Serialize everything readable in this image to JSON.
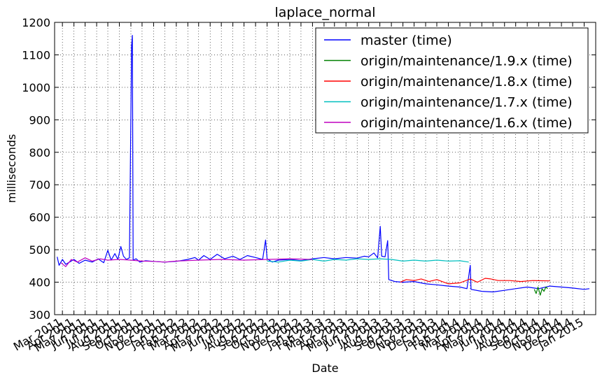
{
  "chart_data": {
    "type": "line",
    "title": "laplace_normal",
    "xlabel": "Date",
    "ylabel": "milliseconds",
    "ylim": [
      300,
      1200
    ],
    "yticks": [
      300,
      400,
      500,
      600,
      700,
      800,
      900,
      1000,
      1100,
      1200
    ],
    "xlim": [
      "2011-02-08",
      "2015-02-01"
    ],
    "xticks": [
      "Mar 2011",
      "Apr 2011",
      "May 2011",
      "Jun 2011",
      "Jul 2011",
      "Aug 2011",
      "Sep 2011",
      "Oct 2011",
      "Nov 2011",
      "Dec 2011",
      "Jan 2012",
      "Feb 2012",
      "Mar 2012",
      "Apr 2012",
      "May 2012",
      "Jun 2012",
      "Jul 2012",
      "Aug 2012",
      "Sep 2012",
      "Oct 2012",
      "Nov 2012",
      "Dec 2012",
      "Jan 2013",
      "Feb 2013",
      "Mar 2013",
      "Apr 2013",
      "May 2013",
      "Jun 2013",
      "Jul 2013",
      "Aug 2013",
      "Sep 2013",
      "Oct 2013",
      "Nov 2013",
      "Dec 2013",
      "Jan 2014",
      "Feb 2014",
      "Mar 2014",
      "Apr 2014",
      "May 2014",
      "Jun 2014",
      "Jul 2014",
      "Aug 2014",
      "Sep 2014",
      "Oct 2014",
      "Nov 2014",
      "Dec 2014",
      "Jan 2015"
    ],
    "grid": true,
    "legend_position": "top-right",
    "series": [
      {
        "name": "master (time)",
        "color": "#0000ff",
        "points": [
          [
            "2011-02-15",
            478
          ],
          [
            "2011-02-20",
            452
          ],
          [
            "2011-03-01",
            470
          ],
          [
            "2011-03-10",
            455
          ],
          [
            "2011-03-20",
            462
          ],
          [
            "2011-04-01",
            470
          ],
          [
            "2011-04-15",
            458
          ],
          [
            "2011-05-01",
            468
          ],
          [
            "2011-05-20",
            462
          ],
          [
            "2011-06-05",
            472
          ],
          [
            "2011-06-20",
            460
          ],
          [
            "2011-07-01",
            498
          ],
          [
            "2011-07-10",
            468
          ],
          [
            "2011-07-20",
            488
          ],
          [
            "2011-07-28",
            470
          ],
          [
            "2011-08-05",
            510
          ],
          [
            "2011-08-12",
            480
          ],
          [
            "2011-08-20",
            470
          ],
          [
            "2011-08-28",
            475
          ],
          [
            "2011-09-03",
            1128
          ],
          [
            "2011-09-05",
            1160
          ],
          [
            "2011-09-07",
            468
          ],
          [
            "2011-09-15",
            472
          ],
          [
            "2011-09-25",
            462
          ],
          [
            "2011-10-10",
            466
          ],
          [
            "2011-11-01",
            464
          ],
          [
            "2011-12-01",
            462
          ],
          [
            "2012-01-01",
            464
          ],
          [
            "2012-02-01",
            470
          ],
          [
            "2012-02-20",
            476
          ],
          [
            "2012-03-01",
            468
          ],
          [
            "2012-03-15",
            482
          ],
          [
            "2012-04-01",
            470
          ],
          [
            "2012-04-20",
            486
          ],
          [
            "2012-05-10",
            472
          ],
          [
            "2012-06-01",
            480
          ],
          [
            "2012-06-20",
            470
          ],
          [
            "2012-07-10",
            482
          ],
          [
            "2012-08-01",
            476
          ],
          [
            "2012-08-20",
            470
          ],
          [
            "2012-08-28",
            530
          ],
          [
            "2012-09-01",
            472
          ],
          [
            "2012-09-15",
            462
          ],
          [
            "2012-10-01",
            468
          ],
          [
            "2012-11-01",
            470
          ],
          [
            "2012-12-01",
            466
          ],
          [
            "2013-01-01",
            472
          ],
          [
            "2013-02-01",
            476
          ],
          [
            "2013-03-01",
            472
          ],
          [
            "2013-04-01",
            476
          ],
          [
            "2013-05-01",
            474
          ],
          [
            "2013-05-20",
            480
          ],
          [
            "2013-06-01",
            478
          ],
          [
            "2013-06-15",
            490
          ],
          [
            "2013-06-25",
            475
          ],
          [
            "2013-07-02",
            572
          ],
          [
            "2013-07-06",
            480
          ],
          [
            "2013-07-15",
            478
          ],
          [
            "2013-07-22",
            528
          ],
          [
            "2013-07-25",
            408
          ],
          [
            "2013-08-10",
            402
          ],
          [
            "2013-09-01",
            400
          ],
          [
            "2013-10-01",
            402
          ],
          [
            "2013-11-01",
            395
          ],
          [
            "2013-12-01",
            392
          ],
          [
            "2014-01-01",
            388
          ],
          [
            "2014-02-01",
            385
          ],
          [
            "2014-02-20",
            380
          ],
          [
            "2014-03-01",
            452
          ],
          [
            "2014-03-03",
            378
          ],
          [
            "2014-04-01",
            372
          ],
          [
            "2014-05-01",
            370
          ],
          [
            "2014-06-01",
            375
          ],
          [
            "2014-07-01",
            380
          ],
          [
            "2014-08-01",
            385
          ],
          [
            "2014-09-01",
            380
          ],
          [
            "2014-10-01",
            388
          ],
          [
            "2014-11-01",
            385
          ],
          [
            "2014-12-01",
            382
          ],
          [
            "2015-01-01",
            378
          ],
          [
            "2015-01-15",
            380
          ]
        ]
      },
      {
        "name": "origin/maintenance/1.9.x (time)",
        "color": "#008000",
        "points": [
          [
            "2014-08-20",
            378
          ],
          [
            "2014-08-25",
            365
          ],
          [
            "2014-08-30",
            385
          ],
          [
            "2014-09-05",
            360
          ],
          [
            "2014-09-10",
            380
          ],
          [
            "2014-09-15",
            372
          ],
          [
            "2014-09-20",
            385
          ],
          [
            "2014-09-25",
            380
          ]
        ]
      },
      {
        "name": "origin/maintenance/1.8.x (time)",
        "color": "#ff0000",
        "points": [
          [
            "2013-08-25",
            400
          ],
          [
            "2013-09-10",
            408
          ],
          [
            "2013-10-01",
            405
          ],
          [
            "2013-10-20",
            410
          ],
          [
            "2013-11-10",
            402
          ],
          [
            "2013-12-01",
            408
          ],
          [
            "2014-01-01",
            395
          ],
          [
            "2014-02-01",
            398
          ],
          [
            "2014-03-01",
            410
          ],
          [
            "2014-03-20",
            400
          ],
          [
            "2014-04-10",
            412
          ],
          [
            "2014-04-25",
            410
          ],
          [
            "2014-05-15",
            405
          ],
          [
            "2014-06-15",
            405
          ],
          [
            "2014-07-15",
            402
          ],
          [
            "2014-08-15",
            405
          ],
          [
            "2014-10-01",
            404
          ]
        ]
      },
      {
        "name": "origin/maintenance/1.7.x (time)",
        "color": "#00bfbf",
        "points": [
          [
            "2012-09-01",
            465
          ],
          [
            "2012-10-01",
            462
          ],
          [
            "2012-11-01",
            468
          ],
          [
            "2012-12-01",
            465
          ],
          [
            "2013-01-01",
            470
          ],
          [
            "2013-02-01",
            465
          ],
          [
            "2013-03-01",
            470
          ],
          [
            "2013-04-01",
            468
          ],
          [
            "2013-05-01",
            472
          ],
          [
            "2013-06-01",
            470
          ],
          [
            "2013-07-01",
            472
          ],
          [
            "2013-08-01",
            470
          ],
          [
            "2013-09-01",
            465
          ],
          [
            "2013-10-01",
            468
          ],
          [
            "2013-11-01",
            465
          ],
          [
            "2013-12-01",
            468
          ],
          [
            "2014-01-01",
            465
          ],
          [
            "2014-02-01",
            466
          ],
          [
            "2014-02-25",
            462
          ]
        ]
      },
      {
        "name": "origin/maintenance/1.6.x (time)",
        "color": "#bf00bf",
        "points": [
          [
            "2011-02-25",
            460
          ],
          [
            "2011-03-10",
            448
          ],
          [
            "2011-03-25",
            470
          ],
          [
            "2011-04-10",
            462
          ],
          [
            "2011-05-01",
            475
          ],
          [
            "2011-05-20",
            465
          ],
          [
            "2011-06-10",
            472
          ],
          [
            "2011-07-01",
            468
          ],
          [
            "2011-08-01",
            470
          ],
          [
            "2011-09-01",
            468
          ],
          [
            "2011-10-01",
            465
          ],
          [
            "2011-11-01",
            464
          ],
          [
            "2011-12-01",
            462
          ],
          [
            "2012-01-01",
            465
          ],
          [
            "2012-03-01",
            468
          ],
          [
            "2012-05-01",
            470
          ],
          [
            "2012-07-01",
            468
          ],
          [
            "2012-09-01",
            470
          ],
          [
            "2012-11-01",
            472
          ],
          [
            "2013-01-01",
            470
          ]
        ]
      }
    ]
  }
}
